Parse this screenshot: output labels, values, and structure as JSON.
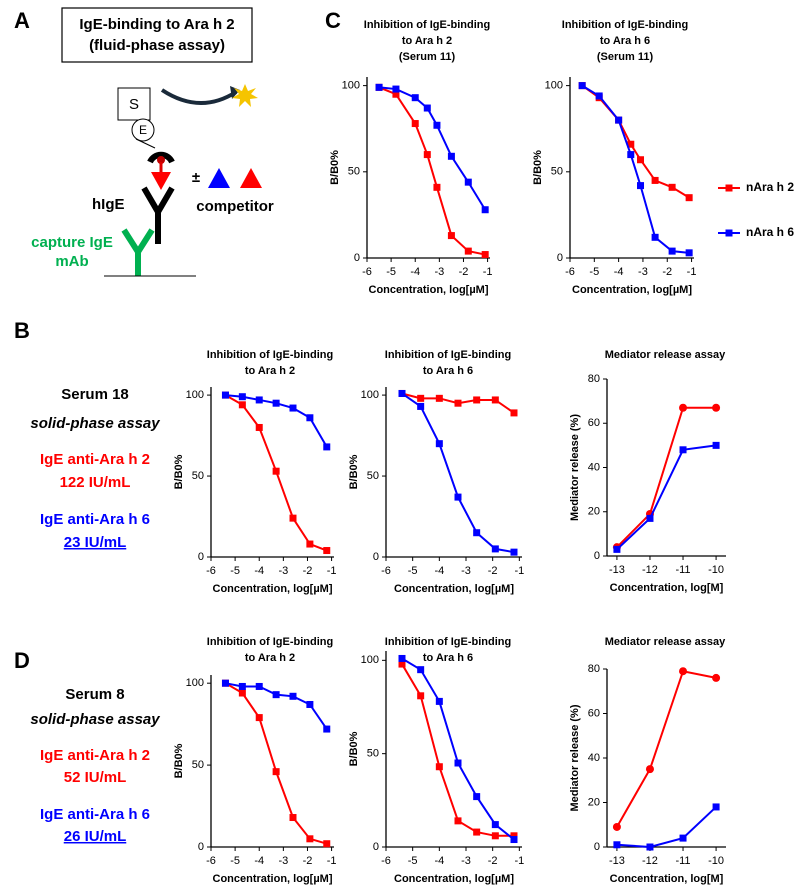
{
  "panel_labels": [
    "A",
    "B",
    "C",
    "D"
  ],
  "diagram": {
    "title": [
      "IgE-binding to Ara h 2",
      "(fluid-phase assay)"
    ],
    "substrate": "S",
    "enzyme": "E",
    "plus_minus": "±",
    "hige": "hIgE",
    "competitor": "competitor",
    "capture": [
      "capture IgE",
      "mAb"
    ]
  },
  "sera": [
    {
      "serum": "Serum 18",
      "assay": "solid-phase assay",
      "ara_h_2": "IgE anti-Ara h 2",
      "ara_h_2_titer": "122 IU/mL",
      "ara_h_6": "IgE anti-Ara h 6",
      "ara_h_6_titer": "23 IU/mL"
    },
    {
      "serum": "Serum 8",
      "assay": "solid-phase assay",
      "ara_h_2": "IgE anti-Ara h 2",
      "ara_h_2_titer": "52 IU/mL",
      "ara_h_6": "IgE anti-Ara h 6",
      "ara_h_6_titer": "26 IU/mL"
    }
  ],
  "chart_data": [
    {
      "type": "line",
      "title": [
        "Inhibition of IgE-binding",
        "to Ara h 2",
        "(Serum 11)"
      ],
      "xlabel": "Concentration, log[µM]",
      "ylabel": "B/B0%",
      "x": [
        -5.5,
        -4.8,
        -4.0,
        -3.5,
        -3.1,
        -2.5,
        -1.8,
        -1.1
      ],
      "xlim": [
        -6,
        -0.9
      ],
      "xticks": [
        -6,
        -5,
        -4,
        -3,
        -2,
        -1
      ],
      "ylim": [
        0,
        105
      ],
      "yticks": [
        0,
        50,
        100
      ],
      "series": [
        {
          "color": "#ff0000",
          "marker": "square",
          "values": [
            99,
            95,
            78,
            60,
            41,
            13,
            4,
            2
          ]
        },
        {
          "color": "#0000ff",
          "marker": "square",
          "values": [
            99,
            98,
            93,
            87,
            77,
            59,
            44,
            28
          ]
        }
      ]
    },
    {
      "type": "line",
      "title": [
        "Inhibition of IgE-binding",
        "to Ara h 6",
        "(Serum 11)"
      ],
      "xlabel": "Concentration, log[µM]",
      "ylabel": "B/B0%",
      "x": [
        -5.5,
        -4.8,
        -4.0,
        -3.5,
        -3.1,
        -2.5,
        -1.8,
        -1.1
      ],
      "xlim": [
        -6,
        -0.9
      ],
      "xticks": [
        -6,
        -5,
        -4,
        -3,
        -2,
        -1
      ],
      "ylim": [
        0,
        105
      ],
      "yticks": [
        0,
        50,
        100
      ],
      "legend": "right",
      "series": [
        {
          "name": "nAra h 2",
          "color": "#ff0000",
          "marker": "square",
          "values": [
            100,
            93,
            80,
            66,
            57,
            45,
            41,
            35
          ]
        },
        {
          "name": "nAra h 6",
          "color": "#0000ff",
          "marker": "square",
          "values": [
            100,
            94,
            80,
            60,
            42,
            12,
            4,
            3
          ]
        }
      ]
    },
    {
      "type": "line",
      "title": [
        "Inhibition of IgE-binding",
        "to Ara h 2"
      ],
      "xlabel": "Concentration, log[µM]",
      "ylabel": "B/B0%",
      "x": [
        -5.4,
        -4.7,
        -4.0,
        -3.3,
        -2.6,
        -1.9,
        -1.2
      ],
      "xlim": [
        -6,
        -0.9
      ],
      "xticks": [
        -6,
        -5,
        -4,
        -3,
        -2,
        -1
      ],
      "ylim": [
        0,
        105
      ],
      "yticks": [
        0,
        50,
        100
      ],
      "series": [
        {
          "color": "#ff0000",
          "marker": "square",
          "values": [
            100,
            94,
            80,
            53,
            24,
            8,
            4
          ]
        },
        {
          "color": "#0000ff",
          "marker": "square",
          "values": [
            100,
            99,
            97,
            95,
            92,
            86,
            68
          ]
        }
      ]
    },
    {
      "type": "line",
      "title": [
        "Inhibition of IgE-binding",
        "to Ara h 6"
      ],
      "xlabel": "Concentration, log[µM]",
      "ylabel": "B/B0%",
      "x": [
        -5.4,
        -4.7,
        -4.0,
        -3.3,
        -2.6,
        -1.9,
        -1.2
      ],
      "xlim": [
        -6,
        -0.9
      ],
      "xticks": [
        -6,
        -5,
        -4,
        -3,
        -2,
        -1
      ],
      "ylim": [
        0,
        105
      ],
      "yticks": [
        0,
        50,
        100
      ],
      "series": [
        {
          "color": "#ff0000",
          "marker": "square",
          "values": [
            101,
            98,
            98,
            95,
            97,
            97,
            89
          ]
        },
        {
          "color": "#0000ff",
          "marker": "square",
          "values": [
            101,
            93,
            70,
            37,
            15,
            5,
            3
          ]
        }
      ]
    },
    {
      "type": "line",
      "title": [
        "Mediator release assay"
      ],
      "xlabel": "Concentration, log[M]",
      "ylabel": "Mediator release (%)",
      "x": [
        -13,
        -12,
        -11,
        -10
      ],
      "xlim": [
        -13.3,
        -9.7
      ],
      "xticks": [
        -13,
        -12,
        -11,
        -10
      ],
      "ylim": [
        0,
        80
      ],
      "yticks": [
        0,
        20,
        40,
        60,
        80
      ],
      "series": [
        {
          "color": "#ff0000",
          "marker": "circle",
          "values": [
            4,
            19,
            67,
            67
          ]
        },
        {
          "color": "#0000ff",
          "marker": "square",
          "values": [
            3,
            17,
            48,
            50
          ]
        }
      ]
    },
    {
      "type": "line",
      "title": [
        "Inhibition of IgE-binding",
        "to Ara h 2"
      ],
      "xlabel": "Concentration, log[µM]",
      "ylabel": "B/B0%",
      "x": [
        -5.4,
        -4.7,
        -4.0,
        -3.3,
        -2.6,
        -1.9,
        -1.2
      ],
      "xlim": [
        -6,
        -0.9
      ],
      "xticks": [
        -6,
        -5,
        -4,
        -3,
        -2,
        -1
      ],
      "ylim": [
        0,
        105
      ],
      "yticks": [
        0,
        50,
        100
      ],
      "series": [
        {
          "color": "#ff0000",
          "marker": "square",
          "values": [
            100,
            94,
            79,
            46,
            18,
            5,
            2
          ]
        },
        {
          "color": "#0000ff",
          "marker": "square",
          "values": [
            100,
            98,
            98,
            93,
            92,
            87,
            72
          ]
        }
      ]
    },
    {
      "type": "line",
      "title": [
        "Inhibition of IgE-binding",
        "to Ara h 6"
      ],
      "xlabel": "Concentration, log[µM]",
      "ylabel": "B/B0%",
      "x": [
        -5.4,
        -4.7,
        -4.0,
        -3.3,
        -2.6,
        -1.9,
        -1.2
      ],
      "xlim": [
        -6,
        -0.9
      ],
      "xticks": [
        -6,
        -5,
        -4,
        -3,
        -2,
        -1
      ],
      "ylim": [
        0,
        105
      ],
      "yticks": [
        0,
        50,
        100
      ],
      "series": [
        {
          "color": "#ff0000",
          "marker": "square",
          "values": [
            98,
            81,
            43,
            14,
            8,
            6,
            6
          ]
        },
        {
          "color": "#0000ff",
          "marker": "square",
          "values": [
            101,
            95,
            78,
            45,
            27,
            12,
            4
          ]
        }
      ]
    },
    {
      "type": "line",
      "title": [
        "Mediator release assay"
      ],
      "xlabel": "Concentration, log[M]",
      "ylabel": "Mediator release (%)",
      "x": [
        -13,
        -12,
        -11,
        -10
      ],
      "xlim": [
        -13.3,
        -9.7
      ],
      "xticks": [
        -13,
        -12,
        -11,
        -10
      ],
      "ylim": [
        0,
        80
      ],
      "yticks": [
        0,
        20,
        40,
        60,
        80
      ],
      "series": [
        {
          "color": "#ff0000",
          "marker": "circle",
          "values": [
            9,
            35,
            79,
            76
          ]
        },
        {
          "color": "#0000ff",
          "marker": "square",
          "values": [
            1,
            0,
            4,
            18
          ]
        }
      ]
    }
  ]
}
